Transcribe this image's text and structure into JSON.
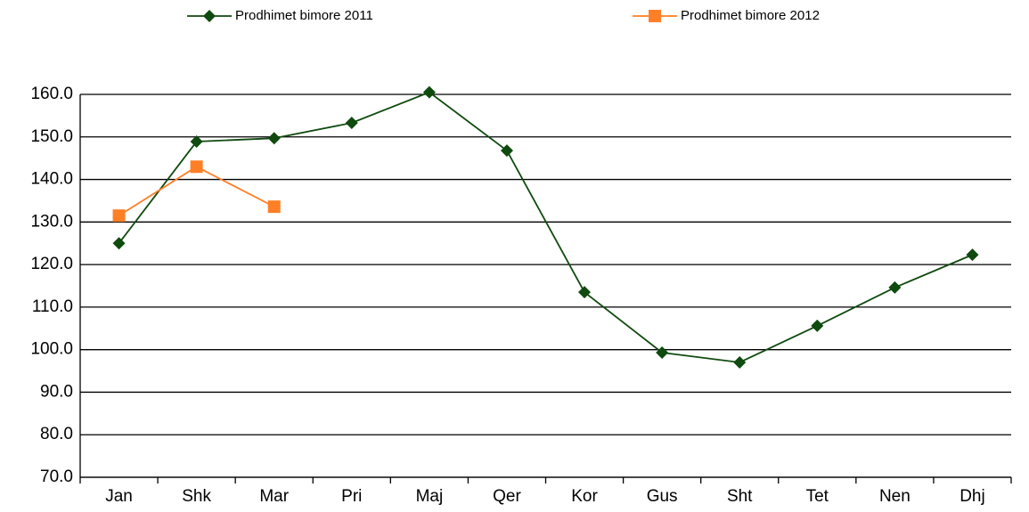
{
  "chart_data": {
    "type": "line",
    "categories": [
      "Jan",
      "Shk",
      "Mar",
      "Pri",
      "Maj",
      "Qer",
      "Kor",
      "Gus",
      "Sht",
      "Tet",
      "Nen",
      "Dhj"
    ],
    "series": [
      {
        "name": "Prodhimet bimore 2011",
        "color": "#0f4a0f",
        "marker": "diamond",
        "values": [
          125.0,
          148.9,
          149.7,
          153.3,
          160.5,
          146.8,
          113.5,
          99.3,
          97.0,
          105.6,
          114.6,
          122.3
        ]
      },
      {
        "name": "Prodhimet bimore 2012",
        "color": "#ff7f27",
        "marker": "square",
        "values": [
          131.5,
          143.0,
          133.6,
          null,
          null,
          null,
          null,
          null,
          null,
          null,
          null,
          null
        ]
      }
    ],
    "ylim": [
      70,
      160
    ],
    "yticks": [
      {
        "value": 70,
        "label": "70.0"
      },
      {
        "value": 80,
        "label": "80.0"
      },
      {
        "value": 90,
        "label": "90.0"
      },
      {
        "value": 100,
        "label": "100.0"
      },
      {
        "value": 110,
        "label": "110.0"
      },
      {
        "value": 120,
        "label": "120.0"
      },
      {
        "value": 130,
        "label": "130.0"
      },
      {
        "value": 140,
        "label": "140.0"
      },
      {
        "value": 150,
        "label": "150.0"
      },
      {
        "value": 160,
        "label": "160.0"
      }
    ],
    "grid": true,
    "legend": "top"
  }
}
